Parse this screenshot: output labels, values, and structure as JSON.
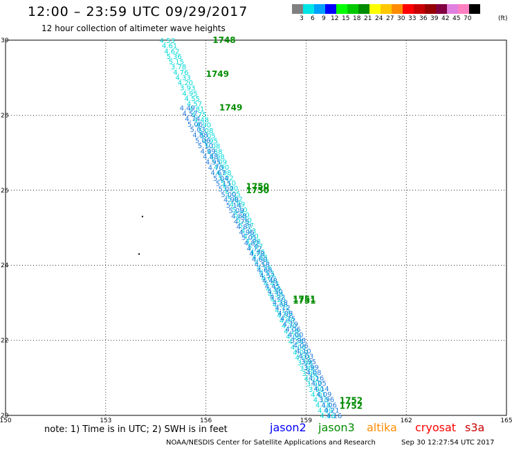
{
  "header": {
    "title": "12:00 – 23:59 UTC 09/29/2017",
    "subtitle": "12 hour collection of altimeter wave heights"
  },
  "legend": {
    "colors": [
      "#808080",
      "#00e5e5",
      "#00a0ff",
      "#0000ff",
      "#00ff00",
      "#00c800",
      "#008c00",
      "#ffff00",
      "#ffc800",
      "#ff8c00",
      "#ff0000",
      "#c80000",
      "#960000",
      "#800040",
      "#e080e0",
      "#ff80c0",
      "#000000"
    ],
    "labels": [
      "3",
      "6",
      "9",
      "12",
      "15",
      "18",
      "21",
      "24",
      "27",
      "30",
      "33",
      "36",
      "39",
      "42",
      "45",
      "70"
    ],
    "unit": "(ft)"
  },
  "footer": {
    "note": "note: 1) Time is in UTC; 2) SWH is in feet",
    "satellites": [
      {
        "name": "jason2",
        "color": "#0000ff"
      },
      {
        "name": "jason3",
        "color": "#008c00"
      },
      {
        "name": "altika",
        "color": "#ff8c00"
      },
      {
        "name": "cryosat",
        "color": "#ff0000"
      },
      {
        "name": "s3a",
        "color": "#c80000"
      }
    ],
    "credit": "NOAA/NESDIS Center for Satellite Applications and Research",
    "timestamp": "Sep 30 12:27:54 UTC 2017"
  },
  "chart_data": {
    "type": "scatter",
    "xlim": [
      150,
      165
    ],
    "ylim": [
      20,
      30
    ],
    "x_ticks": [
      "150",
      "153",
      "156",
      "159",
      "162",
      "165"
    ],
    "y_ticks": [
      "20",
      "22",
      "24",
      "26",
      "28",
      "30"
    ],
    "grid": true,
    "track_a": {
      "start": [
        154.8,
        30.0
      ],
      "end": [
        159.6,
        20.0
      ],
      "values": [
        "4.53",
        "4.61",
        "4.62",
        "5.36",
        "5.15",
        "3.78",
        "4.76",
        "4.33",
        "4.20",
        "3.93",
        "4.95",
        "4.55",
        "4.57",
        "4.81",
        "4.75",
        "4.48",
        "4.90",
        "5.08",
        "5.05",
        "4.95",
        "5.08",
        "4.88",
        "4.98",
        "5.09",
        "4.90",
        "4.98",
        "5.02",
        "5.10",
        "5.00",
        "5.05",
        "5.02",
        "4.89",
        "5.10",
        "5.20",
        "5.30",
        "5.37",
        "4.93",
        "4.90",
        "4.98",
        "5.07",
        "4.85",
        "4.68",
        "4.75",
        "4.56",
        "4.53",
        "4.62",
        "4.43",
        "4.39",
        "4.38",
        "4.20",
        "4.06",
        "4.15",
        "4.02",
        "4.00",
        "4.10",
        "4.18",
        "4.08",
        "4.24",
        "4.06",
        "4.09",
        "4.03",
        "3.98",
        "3.88",
        "3.98",
        "4.02",
        "3.92",
        "3.90",
        "4.01",
        "4.10",
        "4.18",
        "4.09",
        "4.16"
      ]
    },
    "track_b": {
      "start": [
        155.4,
        28.2
      ],
      "end": [
        159.8,
        20.0
      ],
      "values": [
        "4.49",
        "4.57",
        "4.74",
        "5.06",
        "5.03",
        "4.88",
        "5.06",
        "5.10",
        "4.99",
        "4.88",
        "4.95",
        "4.70",
        "4.67",
        "5.04",
        "5.15",
        "5.07",
        "5.00",
        "4.98",
        "5.14",
        "5.09",
        "4.88",
        "4.75",
        "4.87",
        "4.96",
        "5.01",
        "4.82",
        "4.72",
        "4.78",
        "4.60",
        "4.58",
        "4.66",
        "4.52",
        "4.48",
        "4.45",
        "4.30",
        "4.22",
        "4.18",
        "4.12",
        "4.08",
        "4.25",
        "4.19",
        "4.06",
        "4.00",
        "3.98",
        "4.06",
        "4.10",
        "4.03",
        "3.95",
        "3.99",
        "4.08",
        "4.16",
        "4.05",
        "4.14",
        "4.09",
        "3.96",
        "4.06",
        "4.21",
        "4.16"
      ]
    },
    "annotations": [
      {
        "text": "1748",
        "x": 156.2,
        "y": 30.0
      },
      {
        "text": "1749",
        "x": 156.0,
        "y": 29.1
      },
      {
        "text": "1749",
        "x": 156.4,
        "y": 28.2
      },
      {
        "text": "1750",
        "x": 157.2,
        "y": 26.1
      },
      {
        "text": "1750",
        "x": 157.2,
        "y": 26.0
      },
      {
        "text": "1751",
        "x": 158.6,
        "y": 23.1
      },
      {
        "text": "1751",
        "x": 158.6,
        "y": 23.05
      },
      {
        "text": "1752",
        "x": 160.0,
        "y": 20.4
      },
      {
        "text": "1752",
        "x": 160.0,
        "y": 20.25
      }
    ],
    "points": [
      {
        "x": 154.1,
        "y": 25.3
      },
      {
        "x": 154.0,
        "y": 24.3
      }
    ],
    "point_color": "#000000",
    "track_color_a": "#00d8d8",
    "track_color_b": "#1e78dc",
    "annotation_color": "#008c00"
  }
}
